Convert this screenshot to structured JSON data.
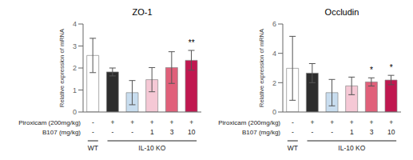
{
  "chart_data": [
    {
      "type": "bar",
      "title": "ZO-1",
      "ylabel": "Relative expression of mRNA",
      "categories": [
        null,
        null,
        null,
        null,
        null,
        null
      ],
      "values": [
        2.57,
        1.82,
        0.88,
        1.47,
        2.02,
        2.35
      ],
      "errors": [
        0.78,
        0.18,
        0.55,
        0.55,
        0.72,
        0.45
      ],
      "colors": [
        "#ffffff",
        "#2d2d2d",
        "#c8ddef",
        "#f5c8d5",
        "#e0607a",
        "#c01850"
      ],
      "ylim": [
        0,
        4
      ],
      "yticks": [
        0,
        1,
        2,
        3,
        4
      ],
      "annotations": [
        {
          "category": 5,
          "y": 2.82,
          "text": "**"
        }
      ],
      "x_table": [
        {
          "label": "Piroxicam (200mg/kg)",
          "values": [
            "-",
            "+",
            "+",
            "+",
            "+",
            "+"
          ]
        },
        {
          "label": "B107 (mg/kg)",
          "values": [
            "-",
            "-",
            "-",
            "1",
            "3",
            "10"
          ]
        }
      ],
      "groups": [
        {
          "label": "WT",
          "from": 0,
          "to": 0
        },
        {
          "label": "IL-10 KO",
          "from": 1,
          "to": 5
        }
      ]
    },
    {
      "type": "bar",
      "title": "Occludin",
      "ylabel": "Relative expression of mRNA",
      "categories": [
        null,
        null,
        null,
        null,
        null,
        null
      ],
      "values": [
        2.98,
        2.65,
        1.32,
        1.78,
        2.05,
        2.18
      ],
      "errors": [
        2.18,
        0.65,
        0.9,
        0.6,
        0.28,
        0.32
      ],
      "colors": [
        "#ffffff",
        "#2d2d2d",
        "#c8ddef",
        "#f5c8d5",
        "#e0607a",
        "#c01850"
      ],
      "ylim": [
        0,
        6
      ],
      "yticks": [
        0,
        2,
        4,
        6
      ],
      "annotations": [
        {
          "category": 4,
          "y": 2.38,
          "text": "*"
        },
        {
          "category": 5,
          "y": 2.56,
          "text": "*"
        }
      ],
      "x_table": [
        {
          "label": "Piroxicam (200mg/kg)",
          "values": [
            "-",
            "+",
            "+",
            "+",
            "+",
            "+"
          ]
        },
        {
          "label": "B107 (mg/kg)",
          "values": [
            "-",
            "-",
            "-",
            "1",
            "3",
            "10"
          ]
        }
      ],
      "groups": [
        {
          "label": "WT",
          "from": 0,
          "to": 0
        },
        {
          "label": "IL-10 KO",
          "from": 1,
          "to": 5
        }
      ]
    }
  ]
}
